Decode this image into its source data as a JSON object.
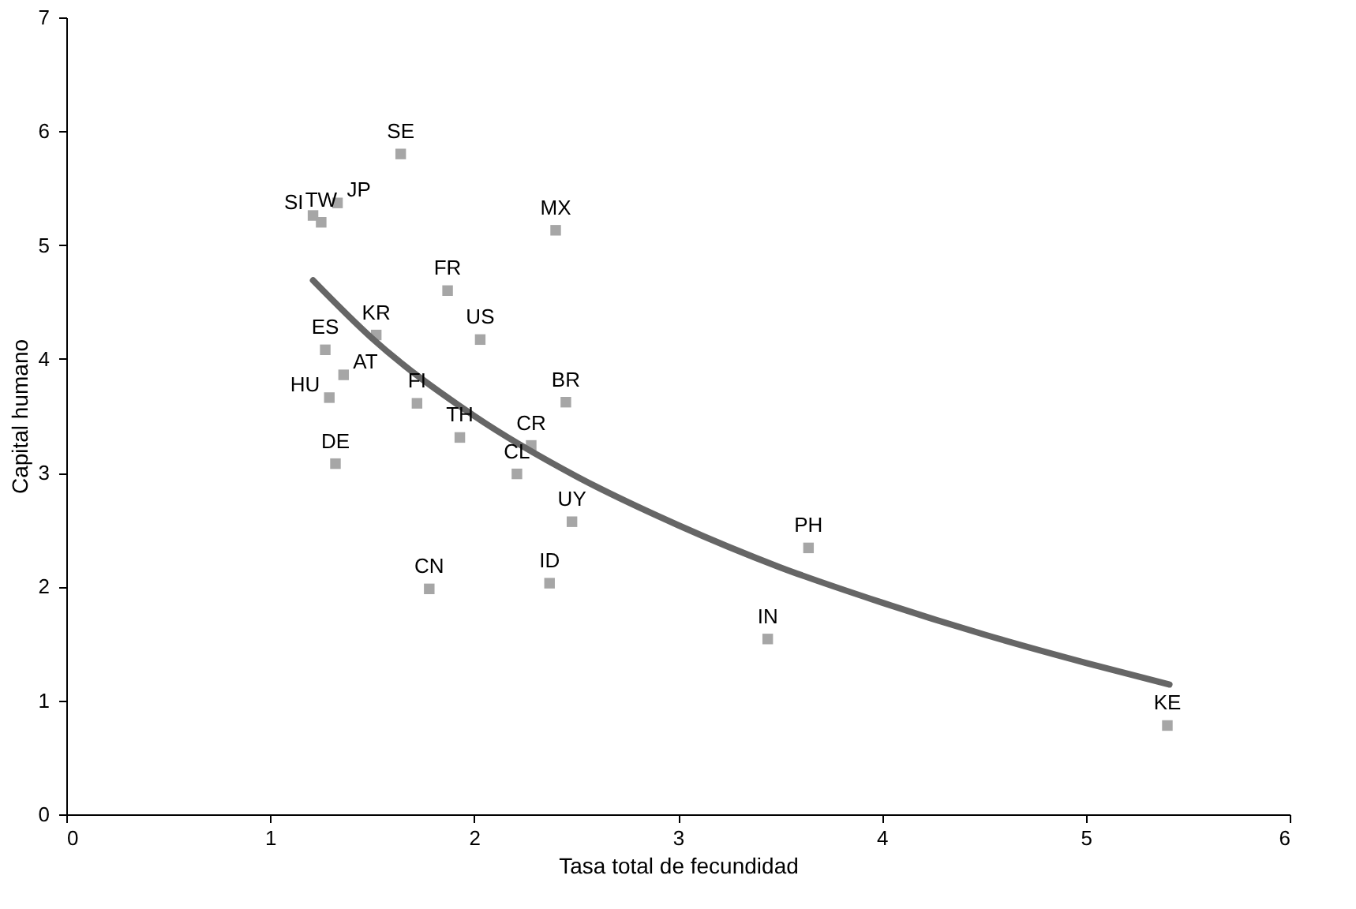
{
  "chart_data": {
    "type": "scatter",
    "xlabel": "Tasa total de fecundidad",
    "ylabel": "Capital humano",
    "xlim": [
      0,
      6
    ],
    "ylim": [
      0,
      7
    ],
    "xticks": [
      0,
      1,
      2,
      3,
      4,
      5,
      6
    ],
    "yticks": [
      0,
      1,
      2,
      3,
      4,
      5,
      6,
      7
    ],
    "grid": false,
    "series": [
      {
        "color": "#a6a6a6",
        "marker": "square",
        "x": [
          1.64,
          1.21,
          1.25,
          1.33,
          2.4,
          1.87,
          1.52,
          2.03,
          1.27,
          1.36,
          1.29,
          1.72,
          2.45,
          1.93,
          2.28,
          1.32,
          2.21,
          2.48,
          3.64,
          1.78,
          2.37,
          3.44,
          5.4
        ],
        "values": [
          5.8,
          5.26,
          5.2,
          5.37,
          5.13,
          4.6,
          4.21,
          4.17,
          4.08,
          3.86,
          3.66,
          3.61,
          3.62,
          3.31,
          3.24,
          3.08,
          2.99,
          2.57,
          2.34,
          1.98,
          2.03,
          1.54,
          0.78
        ]
      },
      {
        "type": "line",
        "color": "#666666",
        "x": [
          1.21,
          1.5,
          2,
          2.5,
          3,
          3.5,
          4,
          4.5,
          5,
          5.41
        ],
        "values": [
          4.69,
          4.18,
          3.5,
          2.97,
          2.54,
          2.17,
          1.86,
          1.58,
          1.33,
          1.14
        ]
      }
    ],
    "annotations": [
      {
        "text": "SE",
        "x": 1.64,
        "y": 5.8
      },
      {
        "text": "SI",
        "x": 1.21,
        "y": 5.26
      },
      {
        "text": "TW",
        "x": 1.25,
        "y": 5.2
      },
      {
        "text": "JP",
        "x": 1.33,
        "y": 5.37
      },
      {
        "text": "MX",
        "x": 2.4,
        "y": 5.13
      },
      {
        "text": "FR",
        "x": 1.87,
        "y": 4.6
      },
      {
        "text": "KR",
        "x": 1.52,
        "y": 4.21
      },
      {
        "text": "US",
        "x": 2.03,
        "y": 4.17
      },
      {
        "text": "ES",
        "x": 1.27,
        "y": 4.08
      },
      {
        "text": "AT",
        "x": 1.36,
        "y": 3.86
      },
      {
        "text": "HU",
        "x": 1.29,
        "y": 3.66
      },
      {
        "text": "FI",
        "x": 1.72,
        "y": 3.61
      },
      {
        "text": "BR",
        "x": 2.45,
        "y": 3.62
      },
      {
        "text": "TH",
        "x": 1.93,
        "y": 3.31
      },
      {
        "text": "CR",
        "x": 2.28,
        "y": 3.24
      },
      {
        "text": "DE",
        "x": 1.32,
        "y": 3.08
      },
      {
        "text": "CL",
        "x": 2.21,
        "y": 2.99
      },
      {
        "text": "UY",
        "x": 2.48,
        "y": 2.57
      },
      {
        "text": "PH",
        "x": 3.64,
        "y": 2.34
      },
      {
        "text": "CN",
        "x": 1.78,
        "y": 1.98
      },
      {
        "text": "ID",
        "x": 2.37,
        "y": 2.03
      },
      {
        "text": "IN",
        "x": 3.44,
        "y": 1.54
      },
      {
        "text": "KE",
        "x": 5.4,
        "y": 0.78
      }
    ]
  }
}
